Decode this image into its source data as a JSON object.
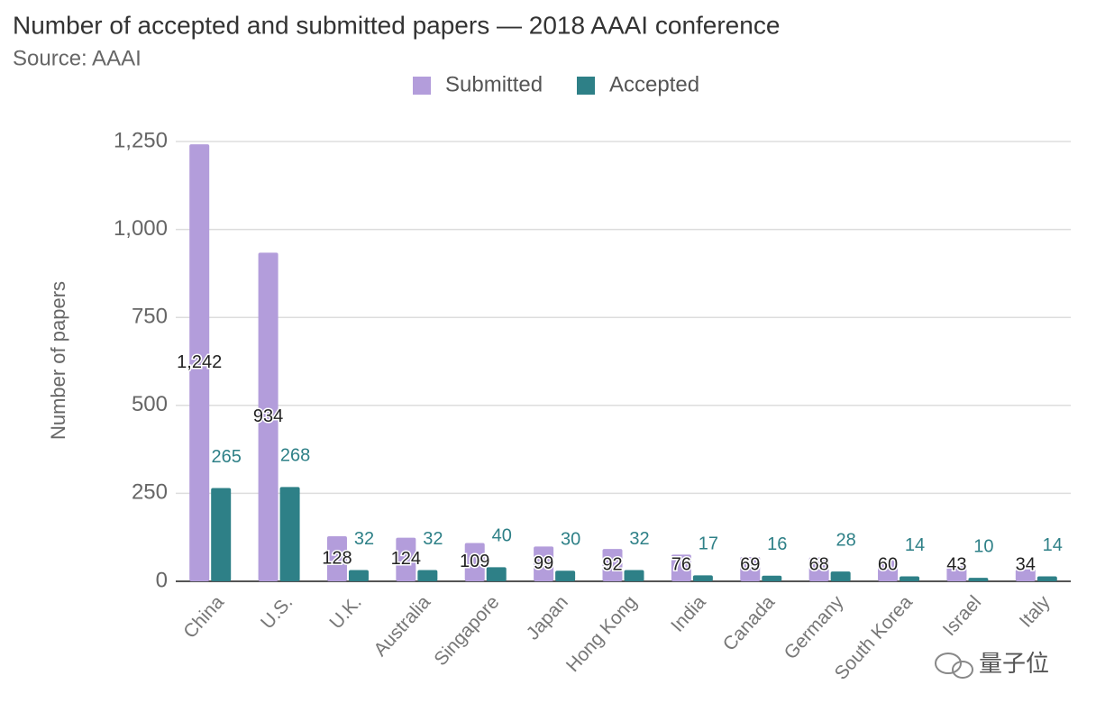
{
  "chart_data": {
    "type": "bar",
    "title": "Number of accepted and submitted papers — 2018 AAAI conference",
    "subtitle": "Source: AAAI",
    "y_label": "Number of papers",
    "watermark": "量子位",
    "categories": [
      "China",
      "U.S.",
      "U.K.",
      "Australia",
      "Singapore",
      "Japan",
      "Hong Kong",
      "India",
      "Canada",
      "Germany",
      "South Korea",
      "Israel",
      "Italy"
    ],
    "series": [
      {
        "name": "Submitted",
        "color": "#b39ddb",
        "values": [
          1242,
          934,
          128,
          124,
          109,
          99,
          92,
          76,
          69,
          68,
          60,
          43,
          34
        ],
        "value_labels": [
          "1,242",
          "934",
          "128",
          "124",
          "109",
          "99",
          "92",
          "76",
          "69",
          "68",
          "60",
          "43",
          "34"
        ]
      },
      {
        "name": "Accepted",
        "color": "#2e8087",
        "values": [
          265,
          268,
          32,
          32,
          40,
          30,
          32,
          17,
          16,
          28,
          14,
          10,
          14
        ]
      }
    ],
    "ylim": [
      0,
      1250
    ],
    "yticks": [
      0,
      250,
      500,
      750,
      {
        "value": 1000,
        "label": "1,000"
      },
      {
        "value": 1250,
        "label": "1,250"
      }
    ],
    "grid": true,
    "legend": "top"
  }
}
